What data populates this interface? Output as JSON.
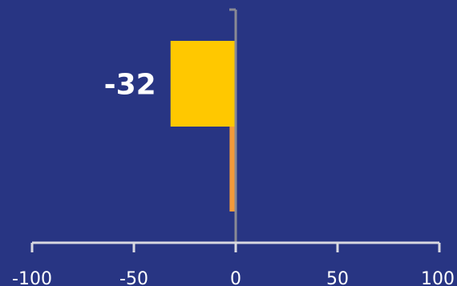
{
  "chart_data": {
    "type": "bar",
    "orientation": "horizontal",
    "categories": [
      "",
      ""
    ],
    "values": [
      -32,
      -3
    ],
    "data_labels": [
      "-32",
      ""
    ],
    "xlim": [
      -100,
      100
    ],
    "xticks": [
      -100,
      -50,
      0,
      50,
      100
    ],
    "title": "",
    "xlabel": "",
    "ylabel": "",
    "grid": false,
    "legend": "none"
  },
  "colors": {
    "background": "#283583",
    "axis": "#d8d8e0",
    "zero_line": "#8a8a94",
    "label": "#ffffff",
    "bars": [
      "#ffc800",
      "#f39a3a"
    ]
  }
}
